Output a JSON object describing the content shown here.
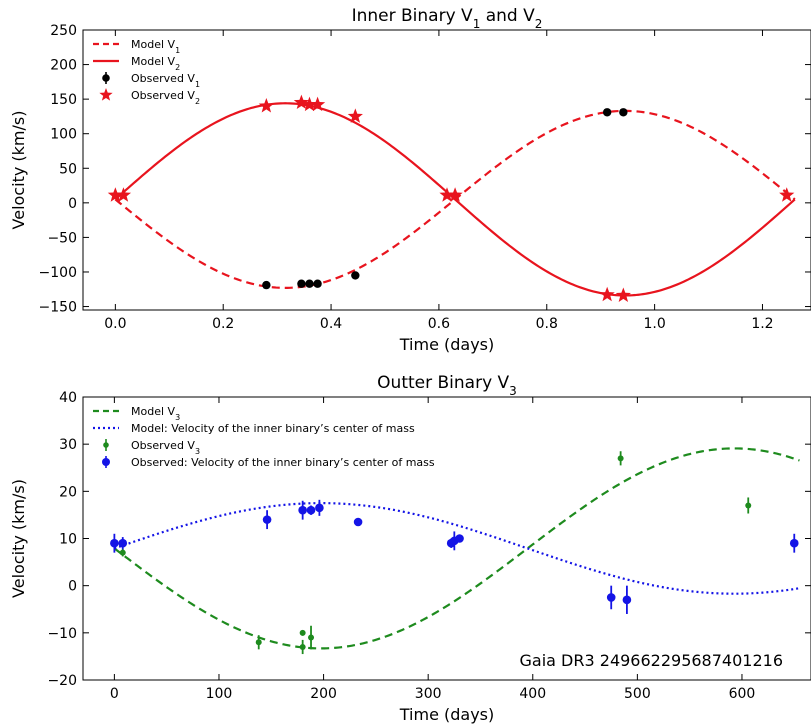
{
  "chart_data": [
    {
      "type": "line",
      "title_parts": [
        "Inner Binary V",
        "1",
        " and V",
        "2"
      ],
      "xlabel": "Time (days)",
      "ylabel": "Velocity (km/s)",
      "xlim": [
        -0.06,
        1.29
      ],
      "ylim": [
        -155,
        250
      ],
      "xticks": [
        0.0,
        0.2,
        0.4,
        0.6,
        0.8,
        1.0,
        1.2
      ],
      "xtick_labels": [
        "0.0",
        "0.2",
        "0.4",
        "0.6",
        "0.8",
        "1.0",
        "1.2"
      ],
      "yticks": [
        -150,
        -100,
        -50,
        0,
        50,
        100,
        150,
        200,
        250
      ],
      "ytick_labels": [
        "−150",
        "−100",
        "−50",
        "0",
        "50",
        "100",
        "150",
        "200",
        "250"
      ],
      "legend_position": "top-left",
      "model": {
        "period": 1.26,
        "gamma": 5,
        "amplitude_v1": 128,
        "amplitude_v2": 139
      },
      "series": [
        {
          "key": "model_v1",
          "kind": "line",
          "style": "dashed",
          "color": "#e8141e",
          "label": [
            "Model V",
            "1"
          ]
        },
        {
          "key": "model_v2",
          "kind": "line",
          "style": "solid",
          "color": "#e8141e",
          "label": [
            "Model V",
            "2"
          ]
        },
        {
          "key": "obs_v1",
          "kind": "points",
          "marker": "circle",
          "color": "#000000",
          "label": [
            "Observed V",
            "1"
          ],
          "points": [
            [
              0.28,
              -119
            ],
            [
              0.345,
              -117
            ],
            [
              0.36,
              -117
            ],
            [
              0.375,
              -117
            ],
            [
              0.445,
              -105
            ],
            [
              0.912,
              131
            ],
            [
              0.942,
              131
            ]
          ]
        },
        {
          "key": "obs_v2",
          "kind": "points",
          "marker": "star",
          "color": "#e8141e",
          "label": [
            "Observed V",
            "2"
          ],
          "points": [
            [
              0.0,
              11
            ],
            [
              0.015,
              11
            ],
            [
              0.28,
              140
            ],
            [
              0.345,
              145
            ],
            [
              0.36,
              142
            ],
            [
              0.375,
              142
            ],
            [
              0.445,
              125
            ],
            [
              0.615,
              11
            ],
            [
              0.63,
              11
            ],
            [
              0.912,
              -133
            ],
            [
              0.942,
              -134
            ],
            [
              1.245,
              11
            ]
          ]
        }
      ]
    },
    {
      "type": "line",
      "title_parts": [
        "Outter Binary V",
        "3",
        "",
        ""
      ],
      "xlabel": "Time (days)",
      "ylabel": "Velocity (km/s)",
      "xlim": [
        -30,
        666
      ],
      "ylim": [
        -20,
        40
      ],
      "xticks": [
        0,
        100,
        200,
        300,
        400,
        500,
        600
      ],
      "xtick_labels": [
        "0",
        "100",
        "200",
        "300",
        "400",
        "500",
        "600"
      ],
      "yticks": [
        -20,
        -10,
        0,
        10,
        20,
        30,
        40
      ],
      "ytick_labels": [
        "−20",
        "−10",
        "0",
        "10",
        "20",
        "30",
        "40"
      ],
      "legend_position": "top-left",
      "annotation": "Gaia DR3 2496622956874012​16",
      "model": {
        "period": 790,
        "gamma": 7.9,
        "amplitude_v3": 21.2,
        "amplitude_cm": 9.6
      },
      "series": [
        {
          "key": "model_v3",
          "kind": "line",
          "style": "dashed",
          "color": "#1e8b1e",
          "label": [
            "Model V",
            "3"
          ]
        },
        {
          "key": "model_cm",
          "kind": "line",
          "style": "dotted",
          "color": "#1414e6",
          "label": [
            "Model: Velocity of the inner binary’s center of mass",
            ""
          ]
        },
        {
          "key": "obs_v3",
          "kind": "errorbar",
          "marker": "circle-small",
          "color": "#1e8b1e",
          "label": [
            "Observed V",
            "3"
          ],
          "points": [
            [
              8,
              7,
              0.8
            ],
            [
              138,
              -12,
              1.5
            ],
            [
              180,
              -10,
              0.6
            ],
            [
              180,
              -13,
              1.5
            ],
            [
              188,
              -11,
              2.5
            ],
            [
              484,
              27,
              1.5
            ],
            [
              606,
              17,
              1.7
            ]
          ]
        },
        {
          "key": "obs_cm",
          "kind": "errorbar",
          "marker": "circle",
          "color": "#1414e6",
          "label": [
            "Observed: Velocity of the inner binary’s center of mass",
            ""
          ],
          "points": [
            [
              0,
              9,
              2.0
            ],
            [
              8,
              9,
              1.3
            ],
            [
              146,
              14,
              2.0
            ],
            [
              180,
              16,
              2.0
            ],
            [
              188,
              16,
              1.0
            ],
            [
              196,
              16.5,
              1.7
            ],
            [
              233,
              13.5,
              0.8
            ],
            [
              322,
              9,
              1.0
            ],
            [
              325,
              9.5,
              2.0
            ],
            [
              330,
              10,
              0.5
            ],
            [
              475,
              -2.5,
              2.5
            ],
            [
              490,
              -3,
              3.0
            ],
            [
              650,
              9,
              2.0
            ]
          ]
        }
      ]
    }
  ]
}
